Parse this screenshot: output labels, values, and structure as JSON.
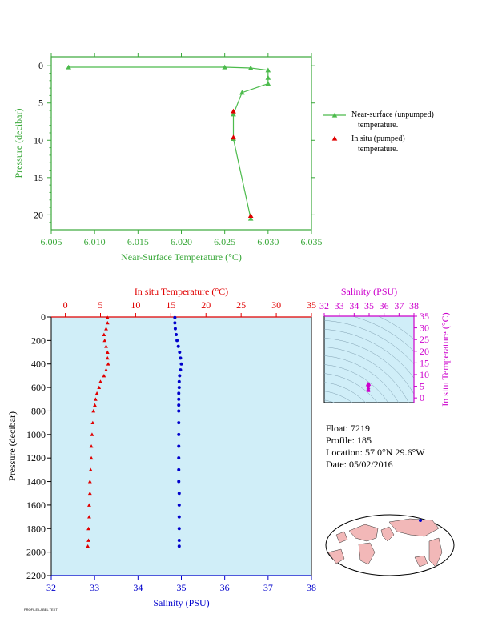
{
  "chart_data": [
    {
      "type": "line",
      "xlabel": "Near-Surface Temperature (°C)",
      "ylabel": "Pressure (decibar)",
      "xlim": [
        6.005,
        6.035
      ],
      "ylim": [
        22,
        -1.2
      ],
      "xticks": [
        "6.005",
        "6.010",
        "6.015",
        "6.020",
        "6.025",
        "6.030",
        "6.035"
      ],
      "yticks": [
        "0",
        "5",
        "10",
        "15",
        "20"
      ],
      "colors": {
        "axis": "#3aa83a",
        "line": "#4cbb4c",
        "insitu": "#e00000"
      },
      "series": [
        {
          "name": "Near-surface (unpumped) temperature.",
          "points": [
            [
              6.007,
              0.2
            ],
            [
              6.025,
              0.2
            ],
            [
              6.028,
              0.3
            ],
            [
              6.03,
              0.6
            ],
            [
              6.03,
              1.6
            ],
            [
              6.03,
              2.4
            ],
            [
              6.027,
              3.6
            ],
            [
              6.026,
              6.5
            ],
            [
              6.026,
              9.8
            ],
            [
              6.028,
              20.5
            ]
          ]
        },
        {
          "name": "In situ (pumped) temperature.",
          "points": [
            [
              6.026,
              6.1
            ],
            [
              6.026,
              9.6
            ],
            [
              6.028,
              20.1
            ]
          ]
        }
      ]
    },
    {
      "type": "scatter",
      "top_xlabel": "In situ Temperature (°C)",
      "bottom_xlabel": "Salinity (PSU)",
      "ylabel": "Pressure (decibar)",
      "temp_xlim": [
        -2,
        35
      ],
      "sal_xlim": [
        32,
        38
      ],
      "ylim": [
        2200,
        0
      ],
      "temp_ticks": [
        "0",
        "5",
        "10",
        "15",
        "20",
        "25",
        "30",
        "35"
      ],
      "sal_ticks": [
        "32",
        "33",
        "34",
        "35",
        "36",
        "37",
        "38"
      ],
      "yticks": [
        "0",
        "200",
        "400",
        "600",
        "800",
        "1000",
        "1200",
        "1400",
        "1600",
        "1800",
        "2000",
        "2200"
      ],
      "colors": {
        "temperature": "#e00000",
        "salinity": "#0000cc",
        "background": "#d0eef8"
      },
      "temperature_profile": [
        [
          6.0,
          5
        ],
        [
          6.0,
          50
        ],
        [
          5.8,
          100
        ],
        [
          5.5,
          150
        ],
        [
          5.6,
          200
        ],
        [
          5.8,
          250
        ],
        [
          6.0,
          300
        ],
        [
          6.0,
          350
        ],
        [
          6.1,
          400
        ],
        [
          5.8,
          450
        ],
        [
          5.5,
          500
        ],
        [
          5.0,
          550
        ],
        [
          4.8,
          600
        ],
        [
          4.5,
          650
        ],
        [
          4.3,
          700
        ],
        [
          4.2,
          750
        ],
        [
          4.0,
          800
        ],
        [
          3.9,
          900
        ],
        [
          3.8,
          1000
        ],
        [
          3.7,
          1100
        ],
        [
          3.7,
          1200
        ],
        [
          3.6,
          1300
        ],
        [
          3.5,
          1400
        ],
        [
          3.5,
          1500
        ],
        [
          3.4,
          1600
        ],
        [
          3.4,
          1700
        ],
        [
          3.3,
          1800
        ],
        [
          3.3,
          1900
        ],
        [
          3.2,
          1950
        ]
      ],
      "salinity_profile": [
        [
          34.85,
          5
        ],
        [
          34.85,
          50
        ],
        [
          34.86,
          100
        ],
        [
          34.88,
          150
        ],
        [
          34.9,
          200
        ],
        [
          34.93,
          250
        ],
        [
          34.96,
          300
        ],
        [
          34.98,
          350
        ],
        [
          35.0,
          400
        ],
        [
          34.98,
          450
        ],
        [
          34.96,
          500
        ],
        [
          34.95,
          550
        ],
        [
          34.95,
          600
        ],
        [
          34.94,
          650
        ],
        [
          34.94,
          700
        ],
        [
          34.94,
          750
        ],
        [
          34.94,
          800
        ],
        [
          34.94,
          900
        ],
        [
          34.94,
          1000
        ],
        [
          34.94,
          1100
        ],
        [
          34.94,
          1200
        ],
        [
          34.94,
          1300
        ],
        [
          34.94,
          1400
        ],
        [
          34.95,
          1500
        ],
        [
          34.95,
          1600
        ],
        [
          34.95,
          1700
        ],
        [
          34.95,
          1800
        ],
        [
          34.95,
          1900
        ],
        [
          34.95,
          1950
        ]
      ]
    },
    {
      "type": "scatter",
      "top_xlabel": "Salinity (PSU)",
      "ylabel": "In situ Temperature (°C)",
      "xlim": [
        32,
        38
      ],
      "ylim": [
        -2,
        35
      ],
      "xticks": [
        "32",
        "33",
        "34",
        "35",
        "36",
        "37",
        "38"
      ],
      "yticks": [
        "0",
        "5",
        "10",
        "15",
        "20",
        "25",
        "30",
        "35"
      ],
      "colors": {
        "axis": "#cc00cc",
        "points": "#cc00cc",
        "background": "#d0eef8"
      },
      "points": [
        [
          34.94,
          6.0
        ],
        [
          34.9,
          5.7
        ],
        [
          35.0,
          5.9
        ],
        [
          34.95,
          4.5
        ],
        [
          34.94,
          4.0
        ],
        [
          34.94,
          3.7
        ],
        [
          34.95,
          3.4
        ],
        [
          34.95,
          3.2
        ],
        [
          34.97,
          5.2
        ],
        [
          34.93,
          6.1
        ]
      ]
    }
  ],
  "legend": {
    "near_surface_line1": "Near-surface (unpumped)",
    "near_surface_line2": "temperature.",
    "insitu_line1": "In situ (pumped)",
    "insitu_line2": "temperature."
  },
  "info": {
    "float": "Float:  7219",
    "profile": "Profile:  185",
    "location": "Location:  57.0°N  29.6°W",
    "date": "Date:  05/02/2016"
  },
  "footer": "PROFILE LABEL TEXT"
}
